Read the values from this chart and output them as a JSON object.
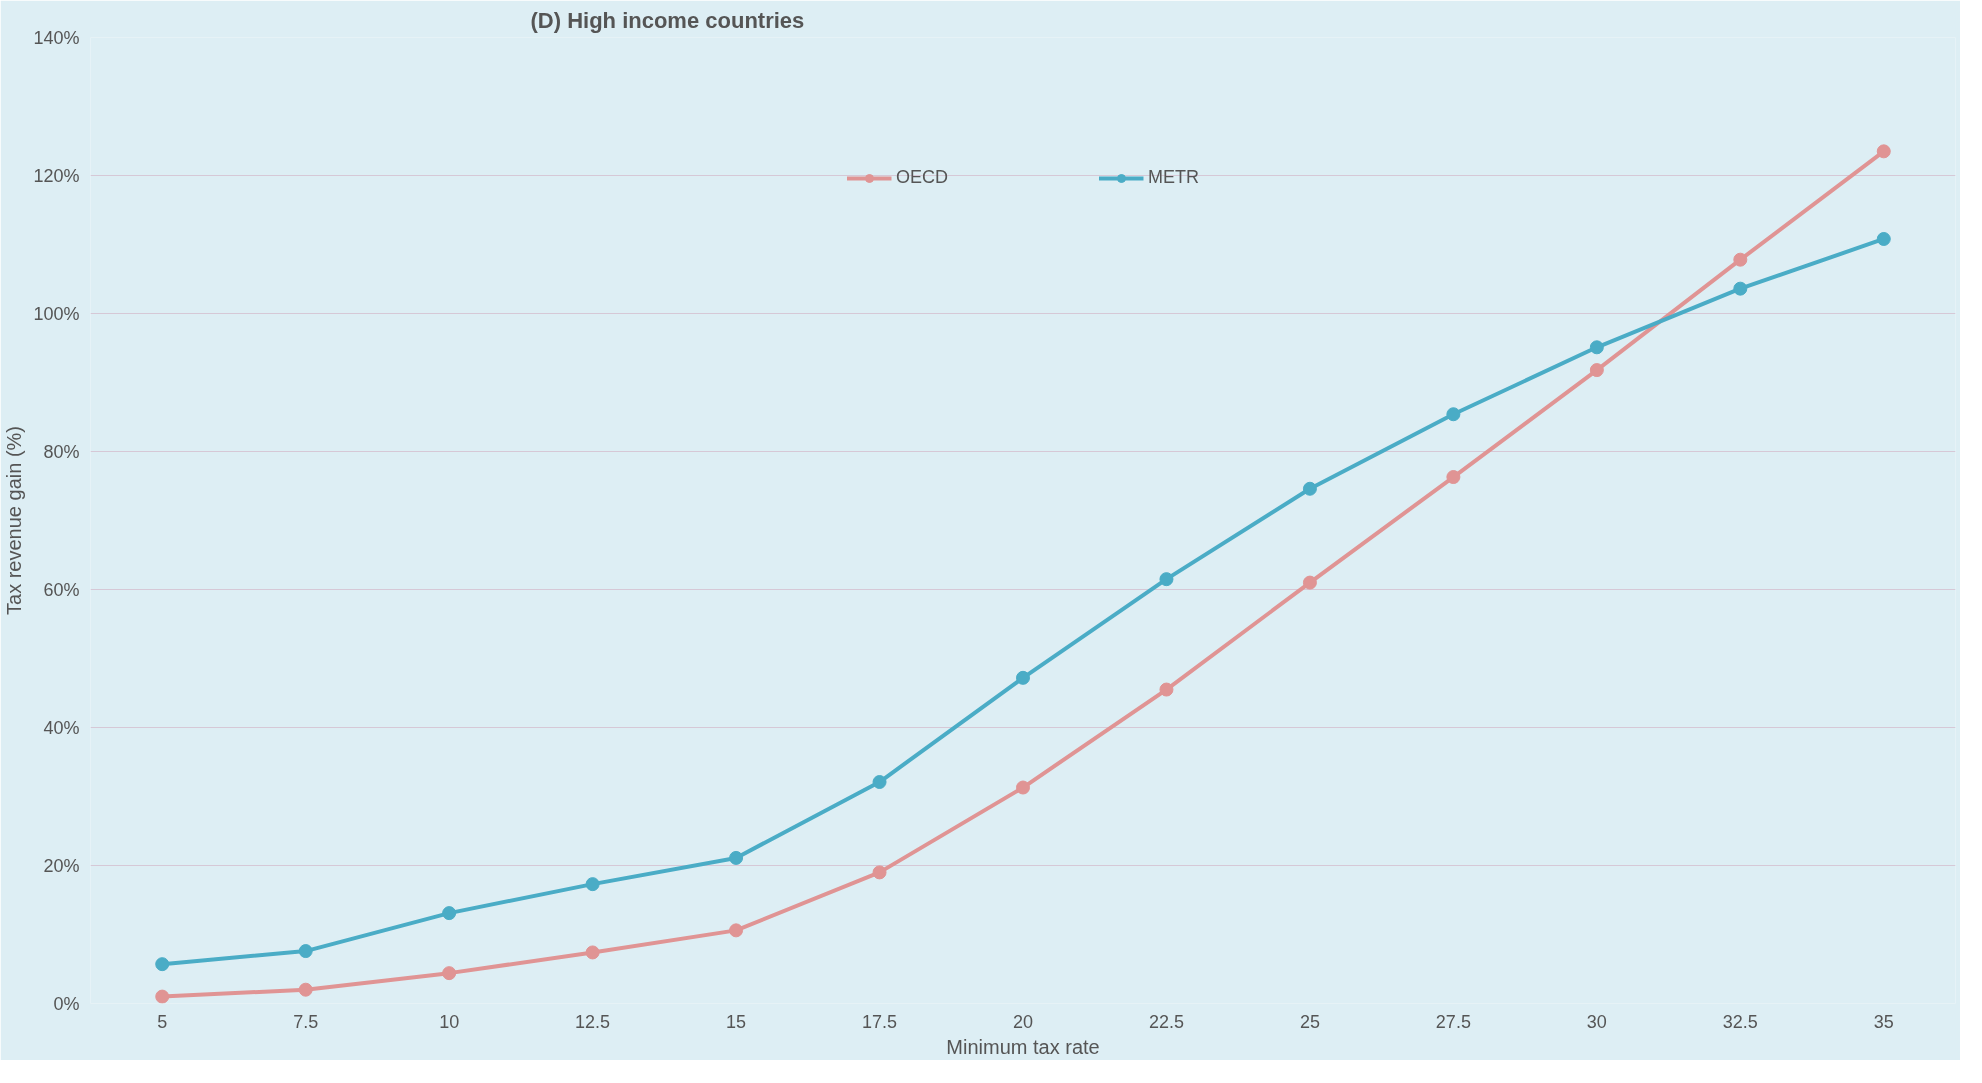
{
  "chart_data": {
    "type": "line",
    "title": "(D) High income countries",
    "xlabel": "Minimum tax rate",
    "ylabel": "Tax revenue gain (%)",
    "categories": [
      "5",
      "7.5",
      "10",
      "12.5",
      "15",
      "17.5",
      "20",
      "22.5",
      "25",
      "27.5",
      "30",
      "32.5",
      "35"
    ],
    "series": [
      {
        "name": "OECD",
        "color": "#e09494",
        "values": [
          1,
          2,
          4.4,
          7.4,
          10.6,
          19,
          31.3,
          45.5,
          61,
          76.3,
          91.8,
          107.8,
          123.5
        ]
      },
      {
        "name": "METR",
        "color": "#4aacc6",
        "values": [
          5.7,
          7.6,
          13.1,
          17.3,
          21.1,
          32.1,
          47.2,
          61.5,
          74.6,
          85.4,
          95.1,
          103.6,
          110.8
        ]
      }
    ],
    "ylim": [
      0,
      140
    ],
    "yticks": [
      {
        "value": 0,
        "label": "0%"
      },
      {
        "value": 20,
        "label": "20%"
      },
      {
        "value": 40,
        "label": "40%"
      },
      {
        "value": 60,
        "label": "60%"
      },
      {
        "value": 80,
        "label": "80%"
      },
      {
        "value": 100,
        "label": "100%"
      },
      {
        "value": 120,
        "label": "120%"
      },
      {
        "value": 140,
        "label": "140%"
      }
    ],
    "grid": "y",
    "legend": "top",
    "marker": "circle",
    "line_style": "solid"
  }
}
